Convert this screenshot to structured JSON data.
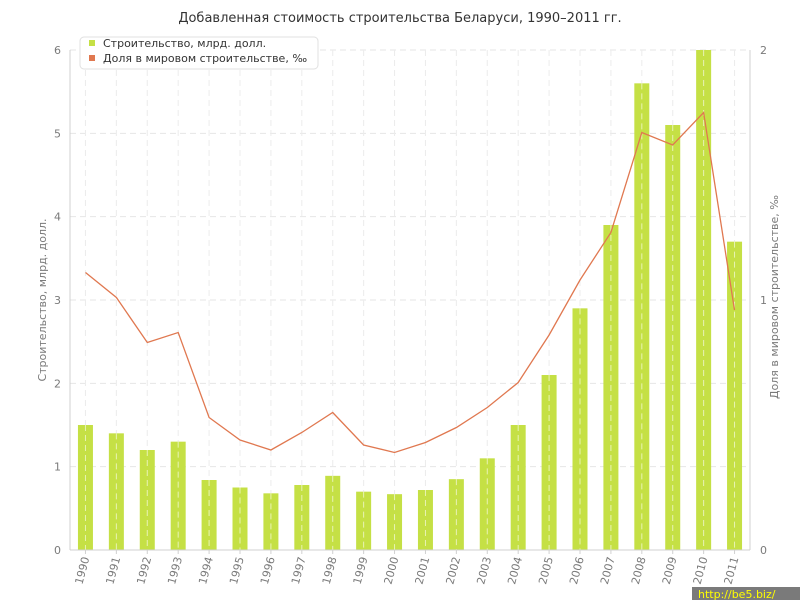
{
  "chart_data": {
    "type": "bar",
    "title": "Добавленная стоимость строительства Беларуси, 1990–2011 гг.",
    "categories": [
      "1990",
      "1991",
      "1992",
      "1993",
      "1994",
      "1995",
      "1996",
      "1997",
      "1998",
      "1999",
      "2000",
      "2001",
      "2002",
      "2003",
      "2004",
      "2005",
      "2006",
      "2007",
      "2008",
      "2009",
      "2010",
      "2011"
    ],
    "series": [
      {
        "name": "Строительство, млрд. долл.",
        "type": "bar",
        "axis": "left",
        "color": "#c5e045",
        "values": [
          1.5,
          1.4,
          1.2,
          1.3,
          0.84,
          0.75,
          0.68,
          0.78,
          0.89,
          0.7,
          0.67,
          0.72,
          0.85,
          1.1,
          1.5,
          2.1,
          2.9,
          3.9,
          5.6,
          5.1,
          6.0,
          3.7
        ]
      },
      {
        "name": "Доля в мировом строительстве, ‰",
        "type": "line",
        "axis": "right",
        "color": "#e07850",
        "values": [
          1.11,
          1.01,
          0.83,
          0.87,
          0.53,
          0.44,
          0.4,
          0.47,
          0.55,
          0.42,
          0.39,
          0.43,
          0.49,
          0.57,
          0.67,
          0.86,
          1.08,
          1.27,
          1.67,
          1.62,
          1.75,
          0.96
        ]
      }
    ],
    "ylabel": "Строительство, млрд. долл.",
    "ylabel_right": "Доля в мировом строительстве, ‰",
    "ylim": [
      0,
      6
    ],
    "ylim_right": [
      0,
      2
    ],
    "yticks": [
      "0",
      "1",
      "2",
      "3",
      "4",
      "5",
      "6"
    ],
    "yticks_right": [
      "0",
      "1",
      "2"
    ],
    "grid": true,
    "legend_position": "top-left"
  },
  "watermark": "http://be5.biz/"
}
